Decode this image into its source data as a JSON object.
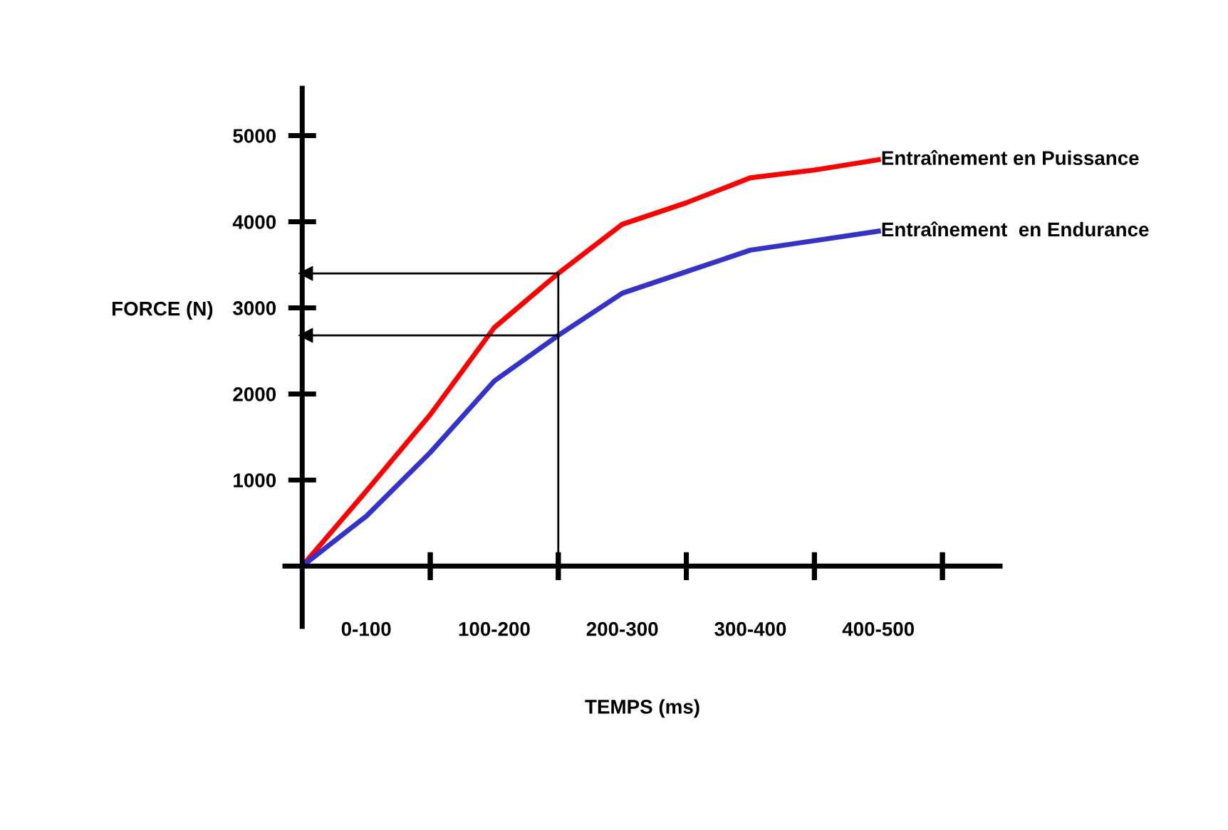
{
  "chart_data": {
    "type": "line",
    "xlabel": "TEMPS (ms)",
    "ylabel": "FORCE (N)",
    "categories": [
      null,
      "0-100",
      null,
      "100-200",
      null,
      "200-300",
      null,
      "300-400",
      null,
      "400-500",
      null
    ],
    "ylim": [
      -700,
      5550
    ],
    "yticks": [
      1000,
      2000,
      3000,
      4000,
      5000
    ],
    "series": [
      {
        "name": "Entraînement en Puissance",
        "color": "#ff0000",
        "values": [
          0,
          870,
          1760,
          2770,
          3400,
          3970,
          4220,
          4510,
          4600,
          4720,
          null
        ]
      },
      {
        "name": "Entraînement  en Endurance",
        "color": "#3333cc",
        "values": [
          0,
          580,
          1320,
          2150,
          2680,
          3170,
          3420,
          3670,
          3780,
          3890,
          null
        ]
      }
    ],
    "ref_lines": [
      {
        "axis": "y",
        "value": 3400,
        "label": null,
        "color": "#000000"
      },
      {
        "axis": "y",
        "value": 2680,
        "label": null,
        "color": "#000000"
      }
    ],
    "grid": false,
    "legend": false,
    "marker": "none",
    "line_style": "solid"
  }
}
